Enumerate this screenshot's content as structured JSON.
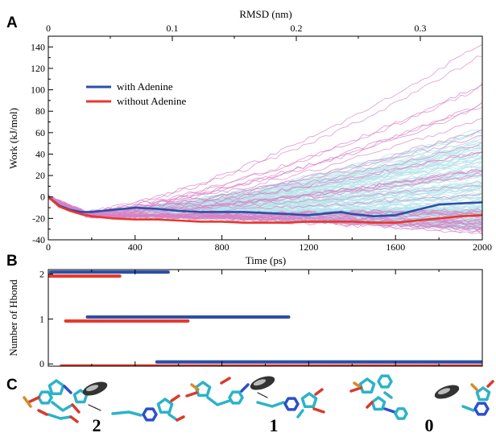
{
  "panels": {
    "a": "A",
    "b": "B",
    "c": "C"
  },
  "chart_data": [
    {
      "type": "line",
      "panel": "A",
      "xlabel": "Time (ps)",
      "ylabel": "Work (kJ/mol)",
      "x2label": "RMSD (nm)",
      "xlim": [
        0,
        2000
      ],
      "ylim": [
        -40,
        150
      ],
      "x2lim": [
        0,
        0.35
      ],
      "xticks": [
        "0",
        "400",
        "800",
        "1200",
        "1600",
        "2000"
      ],
      "yticks": [
        "-40",
        "-20",
        "0",
        "20",
        "40",
        "60",
        "80",
        "100",
        "120",
        "140"
      ],
      "x2ticks": [
        "0",
        "0.1",
        "0.2",
        "0.3"
      ],
      "legend_position": "upper-left",
      "colors": {
        "with": "#2b4fa8",
        "without": "#e8382b",
        "with_traj": "#b7e2ea",
        "without_traj": "#d97fc5"
      },
      "series": [
        {
          "name": "with Adenine",
          "color": "#2b4fa8",
          "x": [
            0,
            50,
            100,
            150,
            200,
            300,
            400,
            500,
            600,
            700,
            800,
            900,
            1000,
            1100,
            1200,
            1300,
            1350,
            1400,
            1500,
            1600,
            1700,
            1800,
            1900,
            2000
          ],
          "y": [
            0,
            -8,
            -12,
            -14,
            -14,
            -12,
            -10,
            -11,
            -13,
            -14,
            -14,
            -14,
            -15,
            -16,
            -17,
            -15,
            -14,
            -16,
            -18,
            -17,
            -12,
            -7,
            -6,
            -5
          ]
        },
        {
          "name": "without Adenine",
          "color": "#e8382b",
          "x": [
            0,
            50,
            100,
            150,
            200,
            300,
            400,
            500,
            600,
            700,
            800,
            900,
            1000,
            1100,
            1200,
            1300,
            1400,
            1500,
            1600,
            1700,
            1800,
            1900,
            2000
          ],
          "y": [
            0,
            -9,
            -13,
            -16,
            -18,
            -20,
            -21,
            -21,
            -22,
            -23,
            -23,
            -24,
            -24,
            -24,
            -23,
            -23,
            -23,
            -24,
            -24,
            -22,
            -20,
            -18,
            -17
          ]
        }
      ]
    },
    {
      "type": "scatter",
      "panel": "B",
      "xlabel": "",
      "ylabel": "Number of Hbond",
      "xlim": [
        0,
        2000
      ],
      "ylim": [
        -0.05,
        2.1
      ],
      "yticks": [
        "0",
        "1",
        "2"
      ],
      "series": [
        {
          "name": "with Adenine",
          "color": "#2b4fa8",
          "segments": [
            {
              "y": 2,
              "x_from": 10,
              "x_to": 555
            },
            {
              "y": 1,
              "x_from": 180,
              "x_to": 1110
            },
            {
              "y": 0,
              "x_from": 500,
              "x_to": 2000
            }
          ]
        },
        {
          "name": "without Adenine",
          "color": "#e8382b",
          "segments": [
            {
              "y": 2,
              "x_from": 0,
              "x_to": 330
            },
            {
              "y": 1,
              "x_from": 80,
              "x_to": 645
            },
            {
              "y": 0,
              "x_from": 60,
              "x_to": 2000
            }
          ]
        }
      ]
    }
  ],
  "states": [
    "2",
    "1",
    "0"
  ]
}
